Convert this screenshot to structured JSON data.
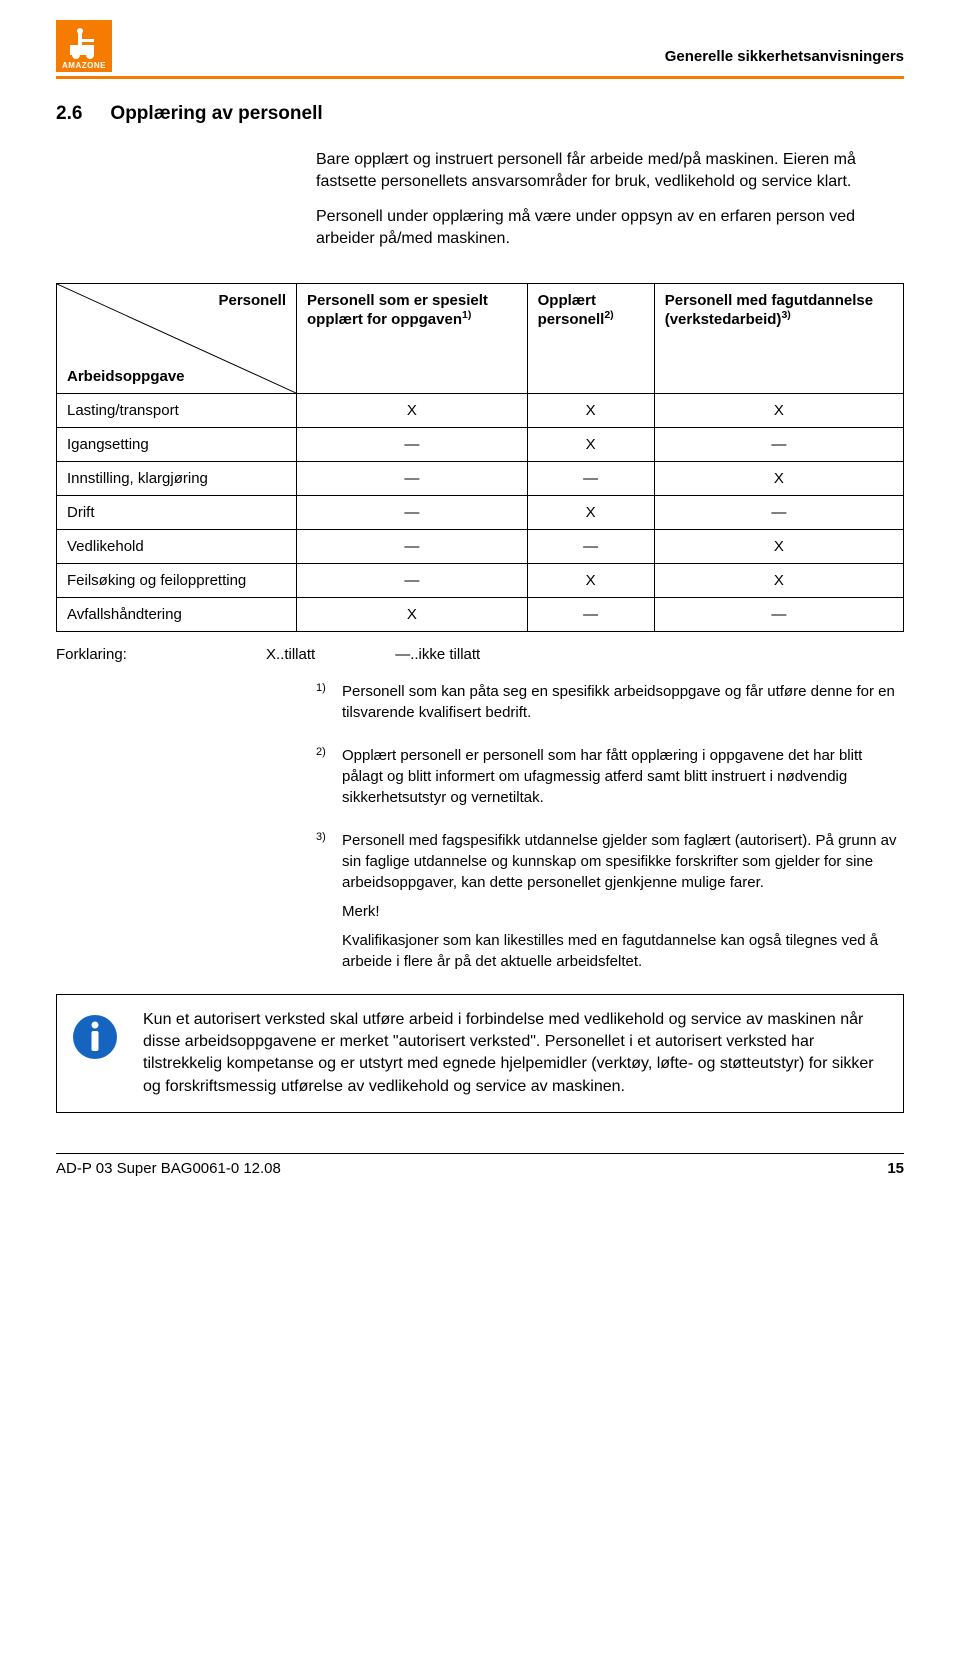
{
  "colors": {
    "accent": "#f57c00",
    "text": "#000000",
    "icon_blue": "#1565c0",
    "white": "#ffffff"
  },
  "header": {
    "logo_text": "AMAZONE",
    "right_text": "Generelle sikkerhetsanvisningers"
  },
  "section": {
    "number": "2.6",
    "title": "Opplæring av personell"
  },
  "intro": {
    "p1": "Bare opplært og instruert personell får arbeide med/på maskinen. Eieren må fastsette personellets ansvarsområder for bruk, vedlikehold og service klart.",
    "p2": "Personell under opplæring må være under oppsyn av en erfaren person ved arbeider på/med maskinen."
  },
  "table": {
    "diag_top": "Personell",
    "diag_bottom": "Arbeidsoppgave",
    "col1": "Personell som er spesielt opplært for oppgaven",
    "col1_sup": "1)",
    "col2": "Opplært personell",
    "col2_sup": "2)",
    "col3": "Personell med fagutdannelse (verkstedarbeid)",
    "col3_sup": "3)",
    "rows": [
      {
        "task": "Lasting/transport",
        "c1": "X",
        "c2": "X",
        "c3": "X"
      },
      {
        "task": "Igangsetting",
        "c1": "—",
        "c2": "X",
        "c3": "—"
      },
      {
        "task": "Innstilling, klargjøring",
        "c1": "—",
        "c2": "—",
        "c3": "X"
      },
      {
        "task": "Drift",
        "c1": "—",
        "c2": "X",
        "c3": "—"
      },
      {
        "task": "Vedlikehold",
        "c1": "—",
        "c2": "—",
        "c3": "X"
      },
      {
        "task": "Feilsøking og feiloppretting",
        "c1": "—",
        "c2": "X",
        "c3": "X"
      },
      {
        "task": "Avfallshåndtering",
        "c1": "X",
        "c2": "—",
        "c3": "—"
      }
    ]
  },
  "legend": {
    "label": "Forklaring:",
    "allowed": "X..tillatt",
    "not_allowed": "—..ikke tillatt"
  },
  "footnotes": {
    "f1_num": "1)",
    "f1": "Personell som kan påta seg en spesifikk arbeidsoppgave og får utføre denne for en tilsvarende kvalifisert bedrift.",
    "f2_num": "2)",
    "f2": "Opplært personell er personell som har fått opplæring i oppgavene det har blitt pålagt og blitt informert om ufagmessig atferd samt blitt instruert i nødvendig sikkerhetsutstyr og vernetiltak.",
    "f3_num": "3)",
    "f3a": "Personell med fagspesifikk utdannelse gjelder som faglært (autorisert). På grunn av sin faglige utdannelse og kunnskap om spesifikke forskrifter som gjelder for sine arbeidsoppgaver, kan dette personellet gjenkjenne mulige farer.",
    "f3b": "Merk!",
    "f3c": "Kvalifikasjoner som kan likestilles med en fagutdannelse kan også tilegnes ved å arbeide i flere år på det aktuelle arbeidsfeltet."
  },
  "notice": "Kun et autorisert verksted skal utføre arbeid i forbindelse med vedlikehold og service av maskinen når disse arbeidsoppgavene er merket \"autorisert verksted\". Personellet i et autorisert verksted har tilstrekkelig kompetanse og er utstyrt med egnede hjelpemidler (verktøy, løfte- og støtteutstyr) for sikker og forskriftsmessig utførelse av vedlikehold og service av maskinen.",
  "footer": {
    "left": "AD-P 03 Super  BAG0061-0  12.08",
    "page": "15"
  }
}
